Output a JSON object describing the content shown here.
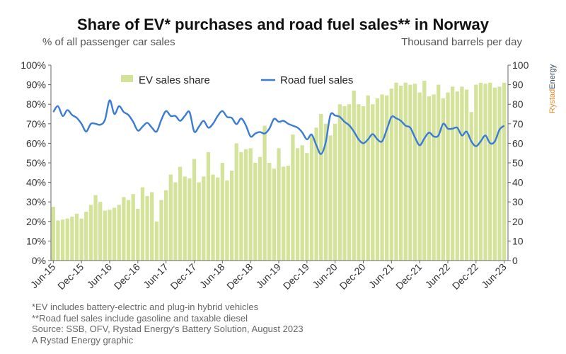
{
  "chart_data": {
    "type": "bar+line",
    "title": "Share of EV* purchases and road fuel sales** in Norway",
    "ylabel_left": "% of all passenger car sales",
    "ylabel_right": "Thousand barrels per day",
    "ylim_left": [
      0,
      100
    ],
    "ylim_right": [
      0,
      100
    ],
    "yticks_left": [
      "0%",
      "10%",
      "20%",
      "30%",
      "40%",
      "50%",
      "60%",
      "70%",
      "80%",
      "90%",
      "100%"
    ],
    "yticks_right": [
      "0",
      "10",
      "20",
      "30",
      "40",
      "50",
      "60",
      "70",
      "80",
      "90",
      "100"
    ],
    "x_tick_labels": [
      "Jun-15",
      "Dec-15",
      "Jun-16",
      "Dec-16",
      "Jun-17",
      "Dec-17",
      "Jun-18",
      "Dec-18",
      "Jun-19",
      "Dec-19",
      "Jun-20",
      "Dec-20",
      "Jun-21",
      "Dec-21",
      "Jun-22",
      "Dec-22",
      "Jun-23"
    ],
    "grid": false,
    "legend": "top",
    "series": [
      {
        "name": "EV sales share",
        "type": "bar",
        "axis": "left",
        "color": "#d4e39a",
        "values": [
          27.5,
          20.5,
          21,
          21.5,
          22.5,
          24,
          21.5,
          25,
          28.5,
          33.5,
          30,
          25.5,
          26,
          27,
          28.5,
          32.5,
          31,
          34,
          26.5,
          37.5,
          33,
          35,
          20,
          31,
          36,
          44,
          40,
          48,
          43,
          42,
          52,
          40,
          43,
          55.5,
          44,
          42.5,
          50,
          41,
          46,
          60,
          55.5,
          57,
          57.5,
          50,
          53,
          69,
          50,
          47,
          57.5,
          48,
          48.5,
          64.5,
          57.5,
          59,
          55,
          64,
          68,
          75,
          70,
          64,
          70,
          80,
          79,
          80,
          87,
          80,
          79,
          84.5,
          80,
          83,
          85,
          84.5,
          88,
          91,
          89.5,
          91,
          90,
          90.5,
          86,
          92,
          84,
          85,
          90,
          83,
          86,
          89,
          86.5,
          89,
          87.5,
          76,
          90,
          91,
          90.5,
          91,
          88.5,
          89,
          91
        ]
      },
      {
        "name": "Road fuel sales",
        "type": "line",
        "axis": "right",
        "color": "#3a7bd5",
        "values": [
          76,
          79,
          74,
          77,
          74.5,
          73,
          70,
          66,
          70,
          70,
          69.5,
          72,
          82,
          75,
          79,
          76,
          74.5,
          71,
          66.5,
          68.5,
          70.5,
          68,
          66,
          72,
          76.5,
          74,
          74,
          71.5,
          74,
          76,
          66,
          68.5,
          71.5,
          68,
          70,
          74,
          76.5,
          73.5,
          73,
          69.8,
          72.7,
          69.2,
          63.5,
          65,
          65.8,
          65,
          67.5,
          72.5,
          71,
          71.5,
          70,
          69,
          68,
          65.6,
          62,
          64.5,
          59,
          54.5,
          60.5,
          74.5,
          74.2,
          73.5,
          71,
          69.2,
          66,
          62,
          60,
          62,
          64.7,
          62,
          61,
          67,
          73.5,
          72.8,
          71.5,
          69,
          68,
          63,
          59,
          62.5,
          65.5,
          63.5,
          64,
          70,
          67.5,
          67.5,
          68,
          64,
          66,
          61,
          58.5,
          61,
          64,
          60,
          61,
          67,
          69
        ]
      }
    ]
  },
  "footnotes": [
    "*EV includes battery-electric and plug-in hybrid vehicles",
    "**Road fuel sales include gasoline and taxable diesel",
    "Source: SSB, OFV, Rystad Energy's Battery Solution, August 2023",
    "A Rystad Energy graphic"
  ],
  "logo": {
    "text_1": "Rystad",
    "text_2": "Energy",
    "color_1": "#f08a24",
    "color_2": "#3a4a5c"
  }
}
